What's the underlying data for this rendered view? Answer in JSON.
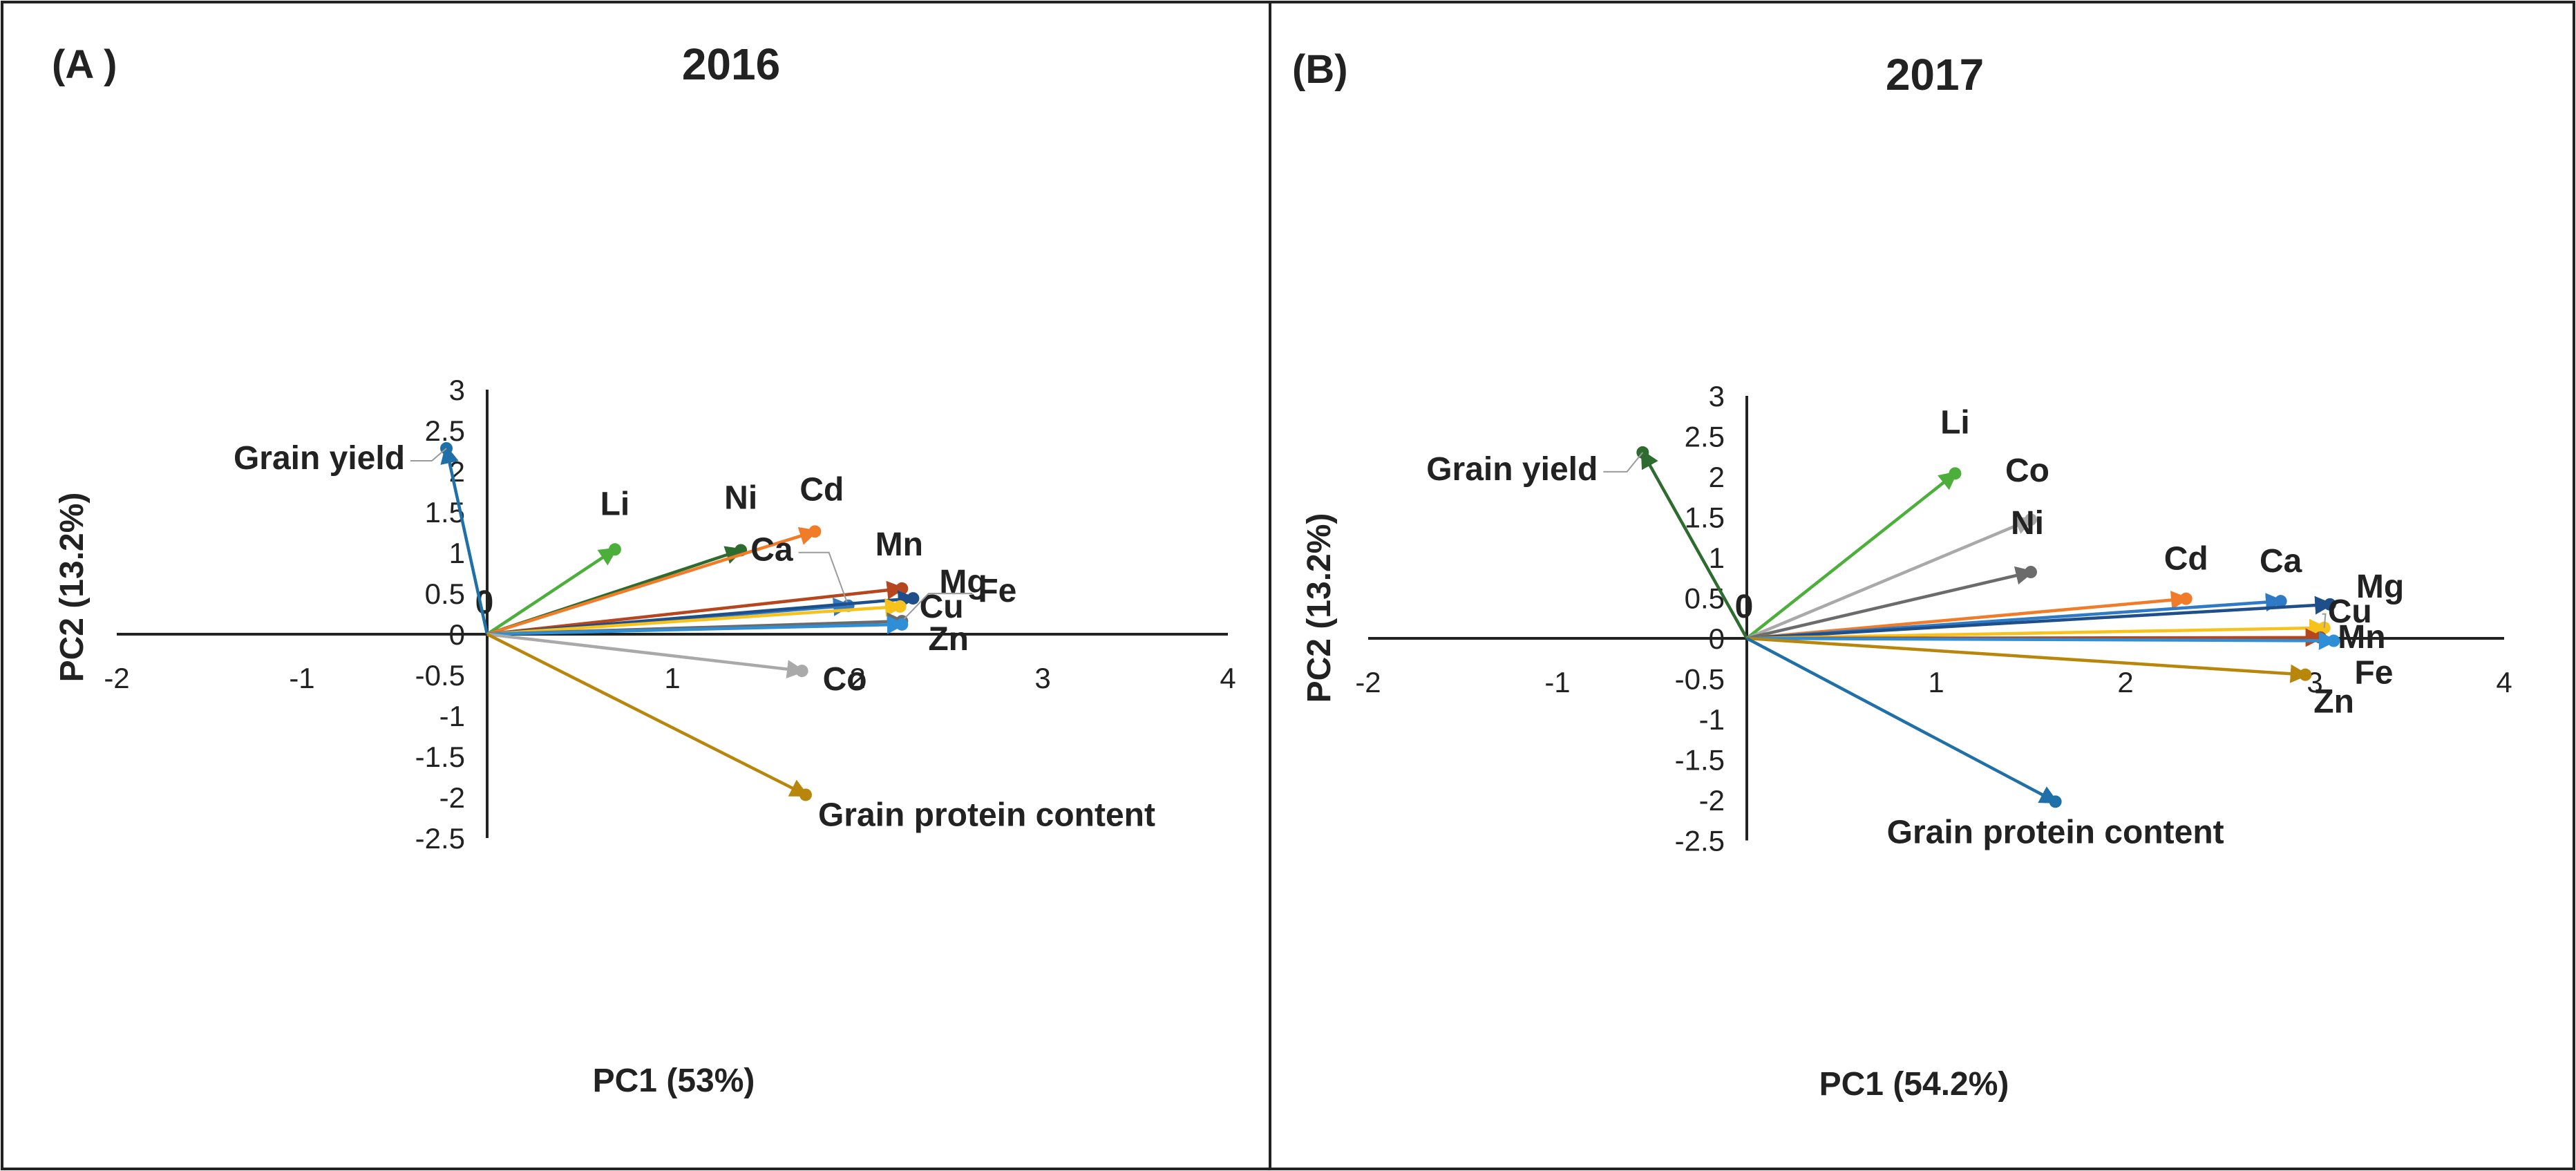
{
  "chart_data": [
    {
      "type": "scatter",
      "panel_letter": "(A )",
      "title": "2016",
      "xlabel": "PC1 (53%)",
      "ylabel": "PC2 (13.2%)",
      "xlim": [
        -2,
        4
      ],
      "ylim": [
        -2.5,
        3
      ],
      "xticks": [
        "-2",
        "-1",
        "1",
        "2",
        "3",
        "4"
      ],
      "yticks": [
        "3",
        "2.5",
        "2",
        "1.5",
        "1",
        "0.5",
        "0",
        "-0.5",
        "-1",
        "-1.5",
        "-2",
        "-2.5"
      ],
      "origin_label": "0",
      "vectors": [
        {
          "name": "Grain yield",
          "x": -0.22,
          "y": 2.28,
          "color": "#1f6fa8"
        },
        {
          "name": "Li",
          "x": 0.69,
          "y": 1.04,
          "color": "#4caf3c"
        },
        {
          "name": "Ni",
          "x": 1.37,
          "y": 1.03,
          "color": "#2e6b2e"
        },
        {
          "name": "Cd",
          "x": 1.77,
          "y": 1.26,
          "color": "#f07c2a"
        },
        {
          "name": "Mn",
          "x": 2.24,
          "y": 0.56,
          "color": "#b5461e"
        },
        {
          "name": "Ca",
          "x": 1.95,
          "y": 0.35,
          "color": "#2f7ac4"
        },
        {
          "name": "Mg",
          "x": 2.3,
          "y": 0.44,
          "color": "#1e4f8a"
        },
        {
          "name": "Cu",
          "x": 2.23,
          "y": 0.34,
          "color": "#f7c21b"
        },
        {
          "name": "Fe",
          "x": 2.24,
          "y": 0.16,
          "color": "#6b6b6b"
        },
        {
          "name": "Zn",
          "x": 2.24,
          "y": 0.12,
          "color": "#2e8fd6"
        },
        {
          "name": "Co",
          "x": 1.7,
          "y": -0.45,
          "color": "#a9a9a9"
        },
        {
          "name": "Grain protein content",
          "x": 1.72,
          "y": -1.97,
          "color": "#b8860b"
        }
      ]
    },
    {
      "type": "scatter",
      "panel_letter": "(B)",
      "title": "2017",
      "xlabel": "PC1 (54.2%)",
      "ylabel": "PC2 (13.2%)",
      "xlim": [
        -2,
        4
      ],
      "ylim": [
        -2.5,
        3
      ],
      "xticks": [
        "-2",
        "-1",
        "1",
        "2",
        "3",
        "4"
      ],
      "yticks": [
        "3",
        "2.5",
        "2",
        "1.5",
        "1",
        "0.5",
        "0",
        "-0.5",
        "-1",
        "-1.5",
        "-2",
        "-2.5"
      ],
      "origin_label": "0",
      "vectors": [
        {
          "name": "Grain yield",
          "x": -0.55,
          "y": 2.3,
          "color": "#2e6b2e"
        },
        {
          "name": "Li",
          "x": 1.1,
          "y": 2.04,
          "color": "#4caf3c"
        },
        {
          "name": "Co",
          "x": 1.5,
          "y": 1.47,
          "color": "#a9a9a9"
        },
        {
          "name": "Ni",
          "x": 1.5,
          "y": 0.82,
          "color": "#6b6b6b"
        },
        {
          "name": "Cd",
          "x": 2.32,
          "y": 0.49,
          "color": "#f07c2a"
        },
        {
          "name": "Ca",
          "x": 2.82,
          "y": 0.46,
          "color": "#2f7ac4"
        },
        {
          "name": "Mg",
          "x": 3.08,
          "y": 0.42,
          "color": "#1e4f8a"
        },
        {
          "name": "Cu",
          "x": 3.05,
          "y": 0.13,
          "color": "#f7c21b"
        },
        {
          "name": "Mn",
          "x": 3.03,
          "y": 0.01,
          "color": "#b5461e"
        },
        {
          "name": "Fe",
          "x": 3.1,
          "y": -0.03,
          "color": "#2e8fd6"
        },
        {
          "name": "Zn",
          "x": 2.95,
          "y": -0.45,
          "color": "#b8860b"
        },
        {
          "name": "Grain protein content",
          "x": 1.63,
          "y": -2.02,
          "color": "#1f6fa8"
        }
      ]
    }
  ]
}
